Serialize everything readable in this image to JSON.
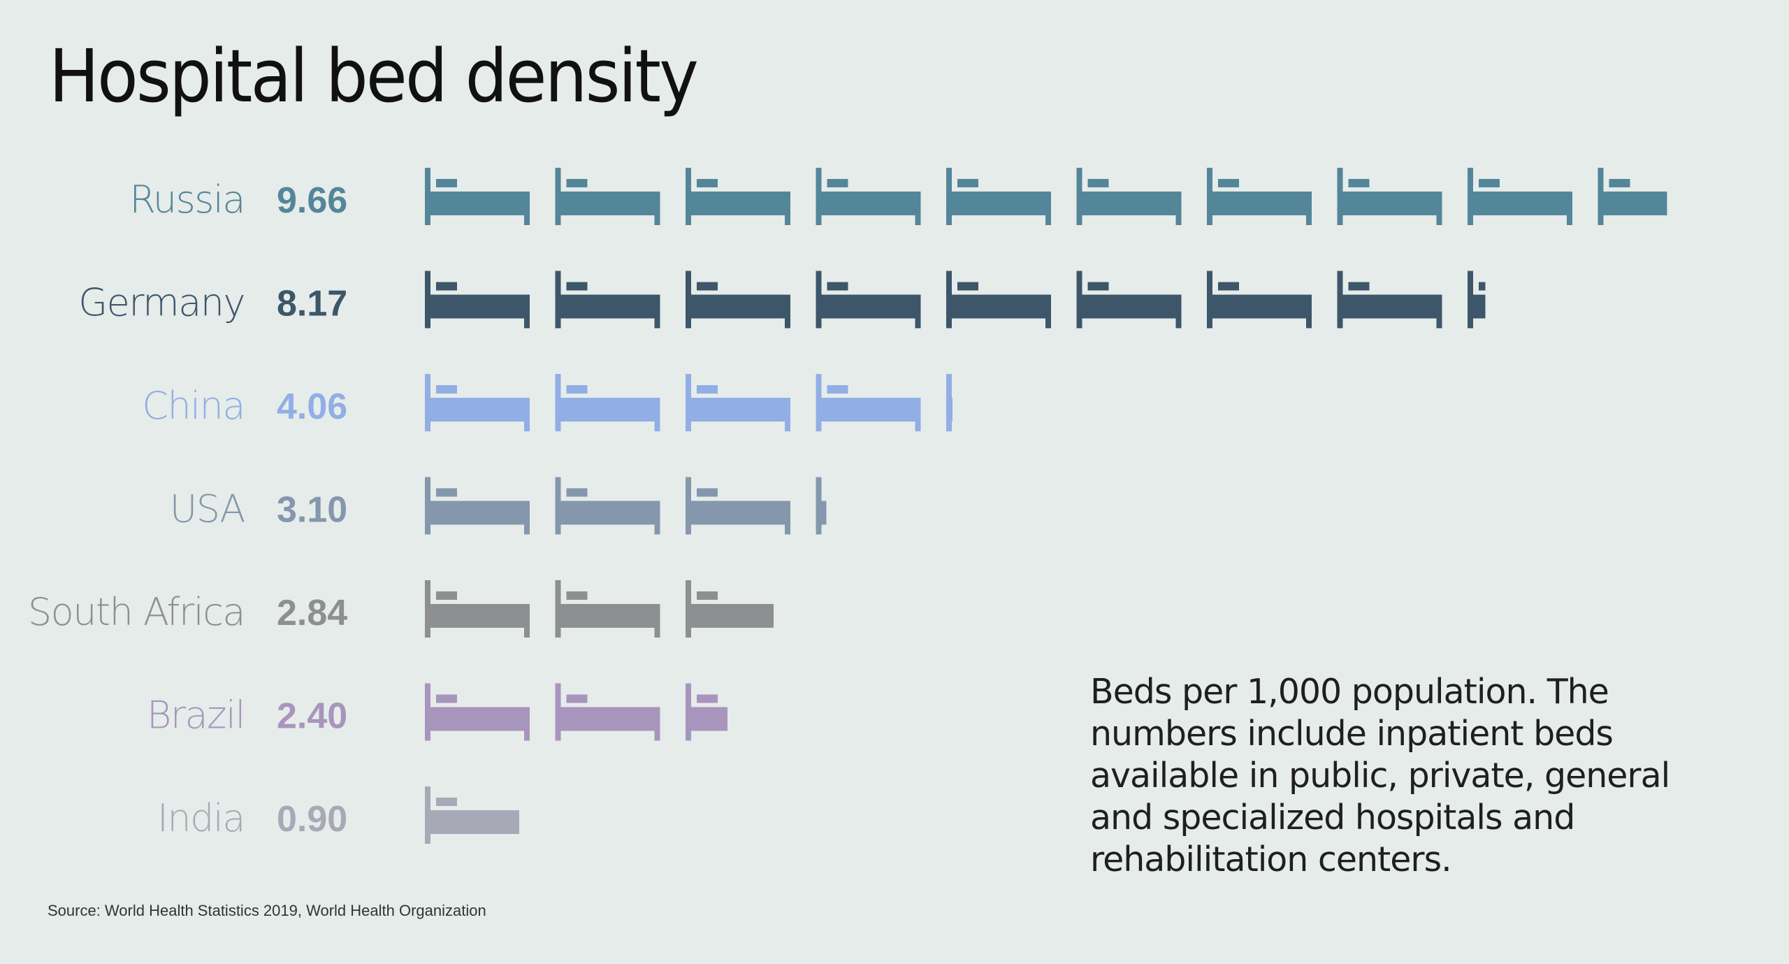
{
  "chart_data": {
    "type": "bar",
    "title": "Hospital bed density",
    "categories": [
      "Russia",
      "Germany",
      "China",
      "USA",
      "South Africa",
      "Brazil",
      "India"
    ],
    "values": [
      9.66,
      8.17,
      4.06,
      3.1,
      2.84,
      2.4,
      0.9
    ],
    "value_labels": [
      "9.66",
      "8.17",
      "4.06",
      "3.10",
      "2.84",
      "2.40",
      "0.90"
    ],
    "colors": [
      "#54869a",
      "#3d5669",
      "#91afe4",
      "#8597ad",
      "#8e8f90",
      "#a895bd",
      "#a8a9b7"
    ],
    "unit_icon": "bed-icon",
    "note": "Beds per 1,000 population. The numbers include inpatient beds available in public, private, general and specialized hospitals and rehabilitation centers.",
    "source": "Source: World Health Statistics 2019, World Health Organization"
  }
}
